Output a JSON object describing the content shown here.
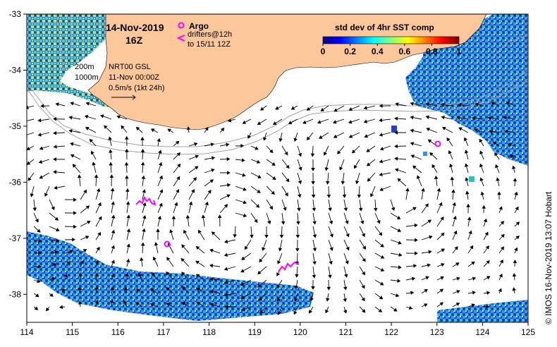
{
  "map": {
    "date": "14-Nov-2019",
    "time": "16Z",
    "argo_label": "Argo",
    "drifters_label": "drifters@12h",
    "drifters_range": "to 15/11 12Z",
    "depth_200": "200m",
    "depth_1000": "1000m",
    "product": "NRT00 GSL",
    "product_time": "11-Nov 00:00Z",
    "velocity_scale": "0.5m/s (1kt 24h)",
    "credit": "© IMOS 16-Nov-2019 13:07 Hobart",
    "x_ticks": [
      "114",
      "115",
      "116",
      "117",
      "118",
      "119",
      "120",
      "121",
      "122",
      "123",
      "124",
      "125"
    ],
    "y_ticks": [
      "-33",
      "-34",
      "-35",
      "-36",
      "-37",
      "-38"
    ],
    "lon_range": [
      114,
      125
    ],
    "lat_range": [
      -38.5,
      -33
    ],
    "colorbar": {
      "title": "std dev of 4hr SST comp",
      "ticks": [
        "0",
        "0.2",
        "0.4",
        "0.6",
        "0.8",
        "1"
      ],
      "range": [
        0,
        1
      ],
      "colors": [
        "#000080",
        "#0000ff",
        "#0080ff",
        "#00ffff",
        "#80ff80",
        "#ffff00",
        "#ff8000",
        "#ff0000",
        "#800000"
      ]
    },
    "colors": {
      "land": "#fcc89b",
      "argo": "#ff00ff",
      "drifter": "#ff00ff",
      "contour": "#a0a0a0"
    }
  }
}
